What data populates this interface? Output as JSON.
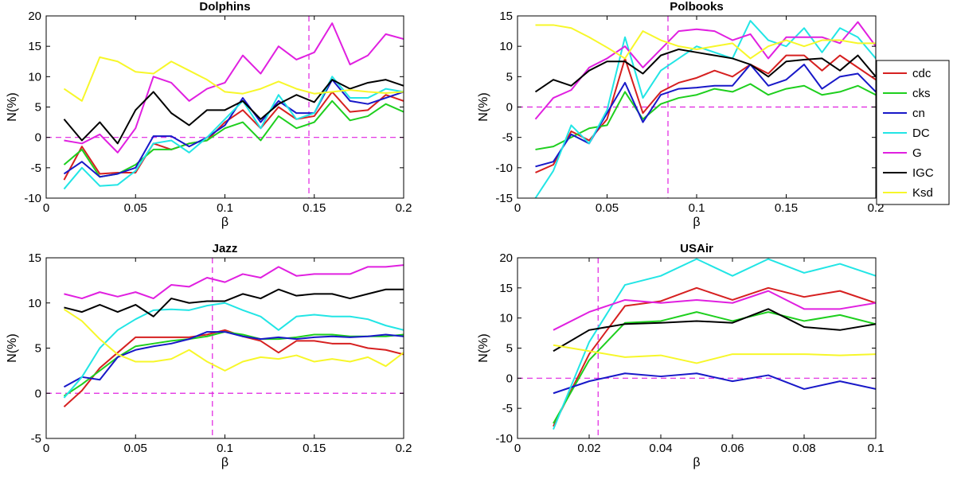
{
  "colors": {
    "cdc": "#d62020",
    "cks": "#1ecf1e",
    "cn": "#1818c8",
    "DC": "#22e5e5",
    "G": "#e020e0",
    "IGC": "#000000",
    "Ksd": "#f7f72a",
    "ref": "#e020e0"
  },
  "legend": {
    "labels": [
      "cdc",
      "cks",
      "cn",
      "DC",
      "G",
      "IGC",
      "Ksd"
    ],
    "placement": "right of Polbooks panel"
  },
  "chart_data": [
    {
      "type": "line",
      "title": "Dolphins",
      "xlabel": "β",
      "ylabel": "N(%)",
      "xlim": [
        0,
        0.2
      ],
      "ylim": [
        -10,
        20
      ],
      "xticks": [
        0,
        0.05,
        0.1,
        0.15,
        0.2
      ],
      "xtick_labels": [
        "0",
        "0.05",
        "0.1",
        "0.15",
        "0.2"
      ],
      "yticks": [
        -10,
        -5,
        0,
        5,
        10,
        15,
        20
      ],
      "ytick_labels": [
        "-10",
        "-5",
        "0",
        "5",
        "10",
        "15",
        "20"
      ],
      "vline": 0.147,
      "hline": 0,
      "x": [
        0.01,
        0.02,
        0.03,
        0.04,
        0.05,
        0.06,
        0.07,
        0.08,
        0.09,
        0.1,
        0.11,
        0.12,
        0.13,
        0.14,
        0.15,
        0.16,
        0.17,
        0.18,
        0.19,
        0.2
      ],
      "series": [
        {
          "name": "cdc",
          "values": [
            -7,
            -1.5,
            -6,
            -5.8,
            -5.8,
            -1,
            -2,
            -1,
            -0.5,
            2.5,
            4.5,
            1.5,
            5,
            3,
            3.5,
            7.5,
            4.2,
            4.5,
            7,
            6
          ]
        },
        {
          "name": "cks",
          "values": [
            -4.5,
            -2,
            -6.5,
            -6,
            -4.5,
            -2,
            -2,
            -1,
            -0.5,
            1.5,
            2.5,
            -0.5,
            3.5,
            1.5,
            2.5,
            6,
            2.8,
            3.5,
            5.5,
            4.2
          ]
        },
        {
          "name": "cn",
          "values": [
            -6,
            -4,
            -6.5,
            -6,
            -5,
            0.2,
            0.2,
            -1.5,
            0,
            2,
            6.5,
            2.5,
            6,
            4,
            4,
            9.5,
            6,
            5.5,
            6.5,
            7.5
          ]
        },
        {
          "name": "DC",
          "values": [
            -8.5,
            -5,
            -8,
            -7.8,
            -5.5,
            -1,
            -0.5,
            -2.5,
            0,
            3,
            6,
            1.5,
            7,
            3,
            4,
            10,
            6.5,
            6.5,
            8,
            7.5
          ]
        },
        {
          "name": "G",
          "values": [
            -0.5,
            -1,
            0.5,
            -2.5,
            1.5,
            10,
            9,
            6,
            8,
            9,
            13.5,
            10.5,
            15,
            12.8,
            14,
            18.8,
            12,
            13.5,
            17,
            16.2
          ]
        },
        {
          "name": "IGC",
          "values": [
            3,
            -0.5,
            2.5,
            -1,
            4.5,
            7.5,
            4,
            2,
            4.5,
            4.5,
            6,
            3,
            5.5,
            7,
            5.8,
            9.5,
            8,
            9,
            9.5,
            8.5
          ]
        },
        {
          "name": "Ksd",
          "values": [
            8,
            6,
            13.2,
            12.5,
            10.8,
            10.5,
            12.5,
            11,
            9.5,
            7.5,
            7.2,
            8,
            9.2,
            8,
            7.2,
            7.5,
            7.8,
            7.5,
            7.3,
            7.5
          ]
        }
      ]
    },
    {
      "type": "line",
      "title": "Polbooks",
      "xlabel": "β",
      "ylabel": "N(%)",
      "xlim": [
        0,
        0.2
      ],
      "ylim": [
        -15,
        15
      ],
      "xticks": [
        0,
        0.05,
        0.1,
        0.15,
        0.2
      ],
      "xtick_labels": [
        "0",
        "0.05",
        "0.1",
        "0.15",
        "0.2"
      ],
      "yticks": [
        -15,
        -10,
        -5,
        0,
        5,
        10,
        15
      ],
      "ytick_labels": [
        "-15",
        "-10",
        "-5",
        "0",
        "5",
        "10",
        "15"
      ],
      "vline": 0.084,
      "hline": 0,
      "x": [
        0.01,
        0.02,
        0.03,
        0.04,
        0.05,
        0.06,
        0.07,
        0.08,
        0.09,
        0.1,
        0.11,
        0.12,
        0.13,
        0.14,
        0.15,
        0.16,
        0.17,
        0.18,
        0.19,
        0.2
      ],
      "series": [
        {
          "name": "cdc",
          "values": [
            -10.8,
            -9.5,
            -4,
            -5.5,
            -2,
            8,
            -1,
            2.5,
            4,
            4.8,
            6,
            5,
            7,
            5.5,
            8.5,
            8.5,
            6,
            8.5,
            6.5,
            4.5
          ]
        },
        {
          "name": "cks",
          "values": [
            -7,
            -6.5,
            -5,
            -3.5,
            -3,
            2.5,
            -2,
            0.5,
            1.5,
            2,
            3,
            2.5,
            3.8,
            2,
            3,
            3.5,
            2,
            2.5,
            3.5,
            2
          ]
        },
        {
          "name": "cn",
          "values": [
            -9.8,
            -9,
            -4.5,
            -6,
            -1,
            4,
            -2.5,
            2,
            3,
            3.2,
            3.5,
            3.5,
            7,
            3.5,
            4.5,
            7,
            3,
            5,
            5.5,
            2.5
          ]
        },
        {
          "name": "DC",
          "values": [
            -15,
            -10.5,
            -3,
            -6,
            -0.5,
            11.5,
            1.5,
            6,
            8,
            10,
            9,
            8,
            14.2,
            11,
            10,
            13,
            9,
            13,
            11.5,
            8
          ]
        },
        {
          "name": "G",
          "values": [
            -2,
            1.5,
            2.8,
            6.5,
            8,
            10,
            6.5,
            9.5,
            12.5,
            12.8,
            12.5,
            11,
            12,
            8,
            11.5,
            11.5,
            11.5,
            10.5,
            14,
            10
          ]
        },
        {
          "name": "IGC",
          "values": [
            2.5,
            4.5,
            3.5,
            6,
            7.5,
            7.5,
            5.5,
            8.5,
            9.5,
            9,
            8.5,
            8,
            7,
            5,
            7.5,
            7.8,
            8,
            6,
            8.5,
            5
          ]
        },
        {
          "name": "Ksd",
          "values": [
            13.5,
            13.5,
            13,
            11.5,
            9.8,
            8,
            12.5,
            11,
            10,
            9.5,
            10,
            10.5,
            8,
            10,
            11,
            10,
            11,
            11,
            10.5,
            10.5
          ]
        }
      ]
    },
    {
      "type": "line",
      "title": "Jazz",
      "xlabel": "β",
      "ylabel": "N(%)",
      "xlim": [
        0,
        0.2
      ],
      "ylim": [
        -5,
        15
      ],
      "xticks": [
        0,
        0.05,
        0.1,
        0.15,
        0.2
      ],
      "xtick_labels": [
        "0",
        "0.05",
        "0.1",
        "0.15",
        "0.2"
      ],
      "yticks": [
        -5,
        0,
        5,
        10,
        15
      ],
      "ytick_labels": [
        "-5",
        "0",
        "5",
        "10",
        "15"
      ],
      "vline": 0.093,
      "hline": 0,
      "x": [
        0.01,
        0.02,
        0.03,
        0.04,
        0.05,
        0.06,
        0.07,
        0.08,
        0.09,
        0.1,
        0.11,
        0.12,
        0.13,
        0.14,
        0.15,
        0.16,
        0.17,
        0.18,
        0.19,
        0.2
      ],
      "series": [
        {
          "name": "cdc",
          "values": [
            -1.5,
            0.3,
            2.8,
            4.5,
            6.2,
            6.2,
            6.2,
            6.2,
            6.5,
            7,
            6.3,
            5.8,
            4.5,
            5.8,
            5.8,
            5.5,
            5.5,
            5,
            4.8,
            4.3
          ]
        },
        {
          "name": "cks",
          "values": [
            -0.3,
            1,
            2.5,
            4,
            5.2,
            5.5,
            5.8,
            6,
            6.3,
            6.8,
            6.5,
            6,
            6,
            6.2,
            6.5,
            6.5,
            6.3,
            6.3,
            6.3,
            6.5
          ]
        },
        {
          "name": "cn",
          "values": [
            0.7,
            1.8,
            1.5,
            4,
            4.8,
            5.2,
            5.5,
            6,
            6.8,
            6.8,
            6.3,
            6,
            6.2,
            6,
            6.2,
            6.3,
            6.2,
            6.3,
            6.5,
            6.3
          ]
        },
        {
          "name": "DC",
          "values": [
            -0.5,
            1.8,
            5,
            7,
            8.2,
            9.2,
            9.3,
            9.2,
            9.7,
            10,
            9.2,
            8.5,
            7,
            8.5,
            8.7,
            8.5,
            8.5,
            8.2,
            7.5,
            7
          ]
        },
        {
          "name": "G",
          "values": [
            11,
            10.5,
            11.2,
            10.7,
            11.2,
            10.5,
            12,
            11.8,
            12.8,
            12.3,
            13.2,
            12.8,
            14,
            13,
            13.2,
            13.2,
            13.2,
            14,
            14,
            14.2
          ]
        },
        {
          "name": "IGC",
          "values": [
            9.5,
            9,
            9.8,
            9,
            9.8,
            8.5,
            10.5,
            10,
            10.2,
            10.2,
            11,
            10.5,
            11.5,
            10.8,
            11,
            11,
            10.5,
            11,
            11.5,
            11.5
          ]
        },
        {
          "name": "Ksd",
          "values": [
            9.3,
            8,
            6,
            4.3,
            3.5,
            3.5,
            3.8,
            4.8,
            3.5,
            2.5,
            3.5,
            4,
            3.8,
            4.2,
            3.5,
            3.8,
            3.5,
            4,
            3,
            4.5
          ]
        }
      ]
    },
    {
      "type": "line",
      "title": "USAir",
      "xlabel": "β",
      "ylabel": "N(%)",
      "xlim": [
        0,
        0.1
      ],
      "ylim": [
        -10,
        20
      ],
      "xticks": [
        0,
        0.02,
        0.04,
        0.06,
        0.08,
        0.1
      ],
      "xtick_labels": [
        "0",
        "0.02",
        "0.04",
        "0.06",
        "0.08",
        "0.1"
      ],
      "yticks": [
        -10,
        -5,
        0,
        5,
        10,
        15,
        20
      ],
      "ytick_labels": [
        "-10",
        "-5",
        "0",
        "5",
        "10",
        "15",
        "20"
      ],
      "vline": 0.0225,
      "hline": 0,
      "x": [
        0.01,
        0.02,
        0.03,
        0.04,
        0.05,
        0.06,
        0.07,
        0.08,
        0.09,
        0.1
      ],
      "series": [
        {
          "name": "cdc",
          "values": [
            -8,
            4,
            12,
            12.8,
            15,
            13,
            15,
            13.5,
            14.5,
            12.5
          ]
        },
        {
          "name": "cks",
          "values": [
            -7.5,
            3,
            9.2,
            9.5,
            11,
            9.5,
            11,
            9.5,
            10.5,
            9
          ]
        },
        {
          "name": "cn",
          "values": [
            -2.5,
            -0.5,
            0.8,
            0.3,
            0.8,
            -0.5,
            0.5,
            -1.8,
            -0.5,
            -1.8
          ]
        },
        {
          "name": "DC",
          "values": [
            -8.5,
            6,
            15.5,
            17,
            19.8,
            17,
            19.8,
            17.5,
            19,
            17
          ]
        },
        {
          "name": "G",
          "values": [
            8,
            11,
            13,
            12.5,
            13,
            12.5,
            14.5,
            11.5,
            11.5,
            12.5
          ]
        },
        {
          "name": "IGC",
          "values": [
            4.5,
            8,
            9,
            9.2,
            9.5,
            9.2,
            11.5,
            8.5,
            8,
            9
          ]
        },
        {
          "name": "Ksd",
          "values": [
            5.5,
            4.5,
            3.5,
            3.8,
            2.5,
            4,
            4,
            4,
            3.8,
            4
          ]
        }
      ]
    }
  ]
}
